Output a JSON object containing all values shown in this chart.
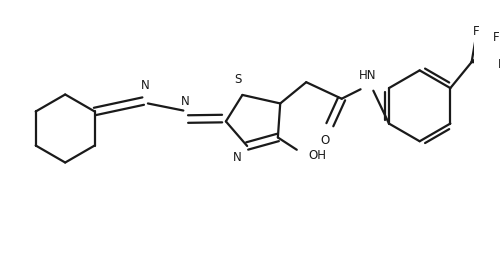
{
  "bg_color": "#ffffff",
  "line_color": "#1a1a1a",
  "line_width": 1.6,
  "font_size": 8.5,
  "figsize": [
    5.0,
    2.57
  ],
  "dpi": 100,
  "xlim": [
    0,
    10.0
  ],
  "ylim": [
    0,
    5.14
  ]
}
